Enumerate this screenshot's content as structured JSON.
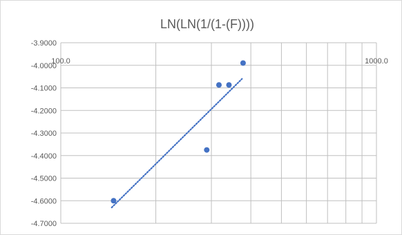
{
  "chart_data": {
    "type": "scatter",
    "title": "LN(LN(1/(1-(F))))",
    "xlabel": "",
    "ylabel": "",
    "x_scale": "log",
    "xlim": [
      100,
      1000
    ],
    "ylim": [
      -4.7,
      -3.9
    ],
    "x_tick_labels": [
      "100.0",
      "1000.0"
    ],
    "y_tick_labels": [
      "-3.9000",
      "-4.0000",
      "-4.1000",
      "-4.2000",
      "-4.3000",
      "-4.4000",
      "-4.5000",
      "-4.6000",
      "-4.7000"
    ],
    "y_ticks": [
      -3.9,
      -4.0,
      -4.1,
      -4.2,
      -4.3,
      -4.4,
      -4.5,
      -4.6,
      -4.7
    ],
    "grid": true,
    "series": [
      {
        "color": "#4472c4",
        "points": [
          {
            "x": 147,
            "y": -4.6
          },
          {
            "x": 290,
            "y": -4.375
          },
          {
            "x": 317,
            "y": -4.087
          },
          {
            "x": 341,
            "y": -4.087
          },
          {
            "x": 378,
            "y": -3.99
          }
        ]
      }
    ],
    "trendline": {
      "type": "linear-on-log-x",
      "style": "dotted",
      "color": "#4472c4",
      "start": {
        "x": 145,
        "y": -4.63
      },
      "end": {
        "x": 375,
        "y": -4.06
      }
    }
  }
}
